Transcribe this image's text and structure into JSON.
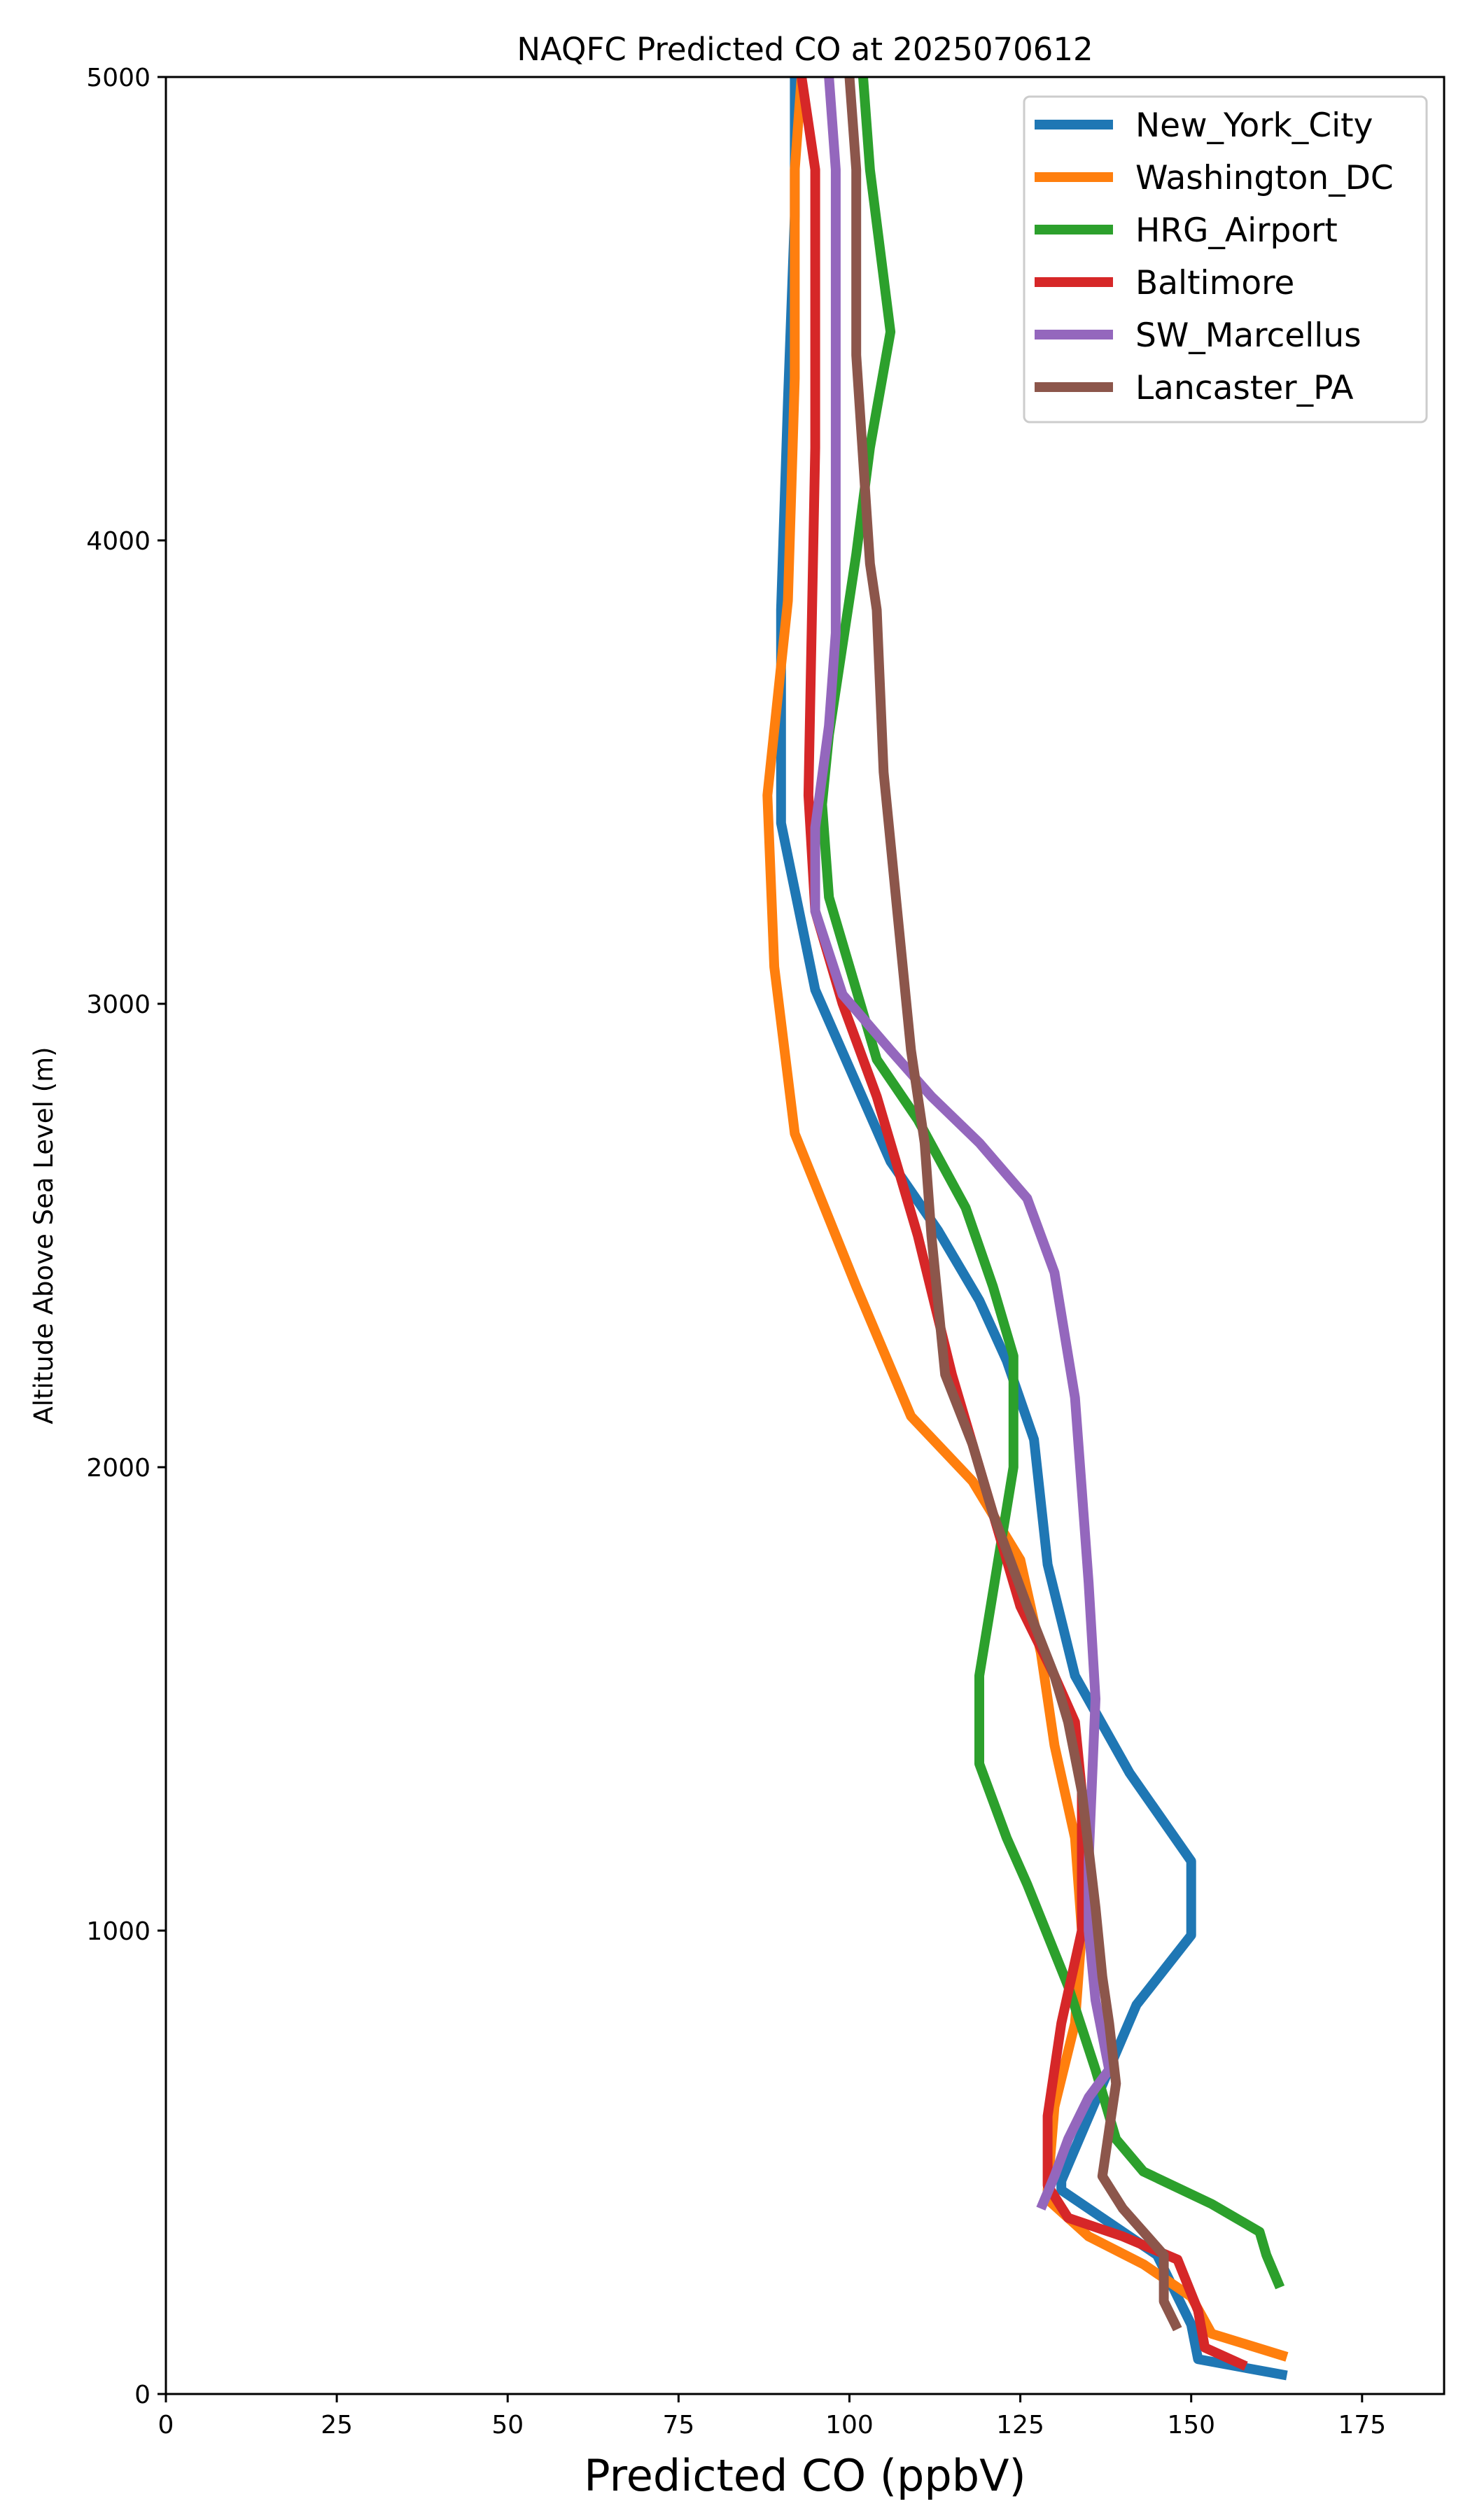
{
  "chart_data": {
    "type": "line",
    "title": "NAQFC Predicted CO at 2025070612",
    "xlabel": "Predicted CO (ppbV)",
    "ylabel": "Altitude Above Sea Level (m)",
    "xlim": [
      0,
      187
    ],
    "ylim": [
      0,
      5000
    ],
    "xticks": [
      0,
      25,
      50,
      75,
      100,
      125,
      150,
      175
    ],
    "yticks": [
      0,
      1000,
      2000,
      3000,
      4000,
      5000
    ],
    "grid": false,
    "legend_position": "top-right",
    "series": [
      {
        "name": "New_York_City",
        "color": "#1f77b4",
        "points": [
          [
            164,
            40
          ],
          [
            151,
            75
          ],
          [
            150,
            150
          ],
          [
            145,
            300
          ],
          [
            131,
            440
          ],
          [
            131,
            460
          ],
          [
            142,
            840
          ],
          [
            150,
            990
          ],
          [
            150,
            1150
          ],
          [
            141,
            1340
          ],
          [
            133,
            1550
          ],
          [
            129,
            1790
          ],
          [
            127,
            2060
          ],
          [
            123,
            2230
          ],
          [
            119,
            2360
          ],
          [
            113,
            2510
          ],
          [
            106,
            2660
          ],
          [
            95,
            3030
          ],
          [
            90,
            3390
          ],
          [
            90,
            3850
          ],
          [
            91,
            4300
          ],
          [
            92,
            4700
          ],
          [
            92,
            5000
          ]
        ]
      },
      {
        "name": "Washington_DC",
        "color": "#ff7f0e",
        "points": [
          [
            164,
            80
          ],
          [
            153,
            130
          ],
          [
            150,
            210
          ],
          [
            143,
            280
          ],
          [
            135,
            340
          ],
          [
            129,
            420
          ],
          [
            129,
            440
          ],
          [
            130,
            620
          ],
          [
            133,
            800
          ],
          [
            134,
            1000
          ],
          [
            133,
            1200
          ],
          [
            130,
            1400
          ],
          [
            128,
            1600
          ],
          [
            125,
            1800
          ],
          [
            118,
            1970
          ],
          [
            109,
            2110
          ],
          [
            101,
            2390
          ],
          [
            92,
            2720
          ],
          [
            89,
            3080
          ],
          [
            88,
            3450
          ],
          [
            91,
            3870
          ],
          [
            92,
            4350
          ],
          [
            92,
            4800
          ],
          [
            93,
            5000
          ]
        ]
      },
      {
        "name": "HRG_Airport",
        "color": "#2ca02c",
        "points": [
          [
            163,
            230
          ],
          [
            161,
            300
          ],
          [
            160,
            350
          ],
          [
            153,
            410
          ],
          [
            143,
            480
          ],
          [
            139,
            550
          ],
          [
            136,
            700
          ],
          [
            132,
            880
          ],
          [
            126,
            1100
          ],
          [
            123,
            1200
          ],
          [
            119,
            1360
          ],
          [
            119,
            1550
          ],
          [
            124,
            2000
          ],
          [
            124,
            2240
          ],
          [
            121,
            2390
          ],
          [
            117,
            2560
          ],
          [
            110,
            2750
          ],
          [
            104,
            2880
          ],
          [
            100,
            3080
          ],
          [
            97,
            3230
          ],
          [
            96,
            3430
          ],
          [
            97,
            3580
          ],
          [
            101,
            3970
          ],
          [
            103,
            4200
          ],
          [
            106,
            4450
          ],
          [
            103,
            4800
          ],
          [
            102,
            5000
          ]
        ]
      },
      {
        "name": "Baltimore",
        "color": "#d62728",
        "points": [
          [
            158,
            60
          ],
          [
            152,
            100
          ],
          [
            151,
            180
          ],
          [
            148,
            290
          ],
          [
            140,
            340
          ],
          [
            132,
            380
          ],
          [
            129,
            450
          ],
          [
            129,
            600
          ],
          [
            131,
            800
          ],
          [
            134,
            1000
          ],
          [
            134,
            1300
          ],
          [
            133,
            1450
          ],
          [
            130,
            1550
          ],
          [
            125,
            1700
          ],
          [
            120,
            1950
          ],
          [
            115,
            2200
          ],
          [
            110,
            2500
          ],
          [
            104,
            2800
          ],
          [
            99,
            3000
          ],
          [
            95,
            3200
          ],
          [
            94,
            3450
          ],
          [
            95,
            4200
          ],
          [
            95,
            4800
          ],
          [
            93,
            5000
          ]
        ]
      },
      {
        "name": "SW_Marcellus",
        "color": "#9467bd",
        "points": [
          [
            128,
            400
          ],
          [
            130,
            470
          ],
          [
            132,
            550
          ],
          [
            135,
            640
          ],
          [
            138,
            700
          ],
          [
            136,
            850
          ],
          [
            135,
            1000
          ],
          [
            135,
            1150
          ],
          [
            136,
            1500
          ],
          [
            135,
            1750
          ],
          [
            134,
            1950
          ],
          [
            133,
            2150
          ],
          [
            130,
            2420
          ],
          [
            126,
            2580
          ],
          [
            119,
            2700
          ],
          [
            112,
            2800
          ],
          [
            106,
            2900
          ],
          [
            99,
            3020
          ],
          [
            95,
            3200
          ],
          [
            95,
            3380
          ],
          [
            97,
            3600
          ],
          [
            98,
            3800
          ],
          [
            98,
            4300
          ],
          [
            98,
            4800
          ],
          [
            97,
            5000
          ]
        ]
      },
      {
        "name": "Lancaster_PA",
        "color": "#8c564b",
        "points": [
          [
            148,
            140
          ],
          [
            146,
            200
          ],
          [
            146,
            300
          ],
          [
            143,
            350
          ],
          [
            140,
            400
          ],
          [
            137,
            470
          ],
          [
            138,
            570
          ],
          [
            139,
            670
          ],
          [
            138,
            800
          ],
          [
            137,
            900
          ],
          [
            136,
            1050
          ],
          [
            134,
            1300
          ],
          [
            132,
            1450
          ],
          [
            130,
            1550
          ],
          [
            126,
            1700
          ],
          [
            121,
            1900
          ],
          [
            118,
            2050
          ],
          [
            114,
            2200
          ],
          [
            112,
            2500
          ],
          [
            111,
            2700
          ],
          [
            109,
            2900
          ],
          [
            107,
            3200
          ],
          [
            105,
            3500
          ],
          [
            104,
            3850
          ],
          [
            103,
            3950
          ],
          [
            101,
            4400
          ],
          [
            101,
            4800
          ],
          [
            100,
            5000
          ]
        ]
      }
    ]
  }
}
